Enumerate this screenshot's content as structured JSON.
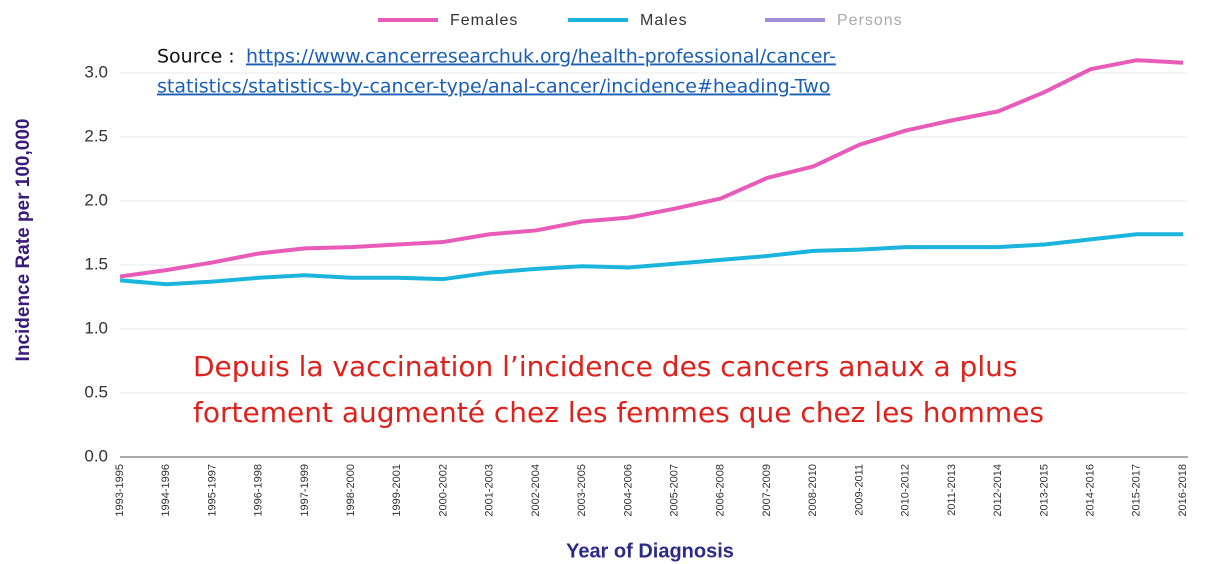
{
  "chart_data": {
    "type": "line",
    "source": {
      "label": "Source :",
      "url_lines": [
        "https://www.cancerresearchuk.org/health-professional/cancer-",
        "statistics/statistics-by-cancer-type/anal-cancer/incidence#heading-Two"
      ]
    },
    "annotation": [
      "Depuis la vaccination l’incidence des cancers anaux a plus",
      "fortement augmenté chez les femmes que chez les hommes"
    ],
    "x_label": "Year of Diagnosis",
    "y_label": "Incidence Rate per 100,000",
    "categories": [
      "1993-1995",
      "1994-1996",
      "1995-1997",
      "1996-1998",
      "1997-1999",
      "1998-2000",
      "1999-2001",
      "2000-2002",
      "2001-2003",
      "2002-2004",
      "2003-2005",
      "2004-2006",
      "2005-2007",
      "2006-2008",
      "2007-2009",
      "2008-2010",
      "2009-2011",
      "2010-2012",
      "2011-2013",
      "2012-2014",
      "2013-2015",
      "2014-2016",
      "2015-2017",
      "2016-2018"
    ],
    "series": [
      {
        "name": "Females",
        "color": "#e85bb8",
        "values": [
          1.41,
          1.46,
          1.52,
          1.59,
          1.63,
          1.64,
          1.66,
          1.68,
          1.74,
          1.77,
          1.84,
          1.87,
          1.94,
          2.02,
          2.18,
          2.27,
          2.44,
          2.55,
          2.63,
          2.7,
          2.85,
          3.03,
          3.1,
          3.08
        ]
      },
      {
        "name": "Males",
        "color": "#1ab4dc",
        "values": [
          1.38,
          1.35,
          1.37,
          1.4,
          1.42,
          1.4,
          1.4,
          1.39,
          1.44,
          1.47,
          1.49,
          1.48,
          1.51,
          1.54,
          1.57,
          1.61,
          1.62,
          1.64,
          1.64,
          1.64,
          1.66,
          1.7,
          1.74,
          1.74
        ]
      },
      {
        "name": "Persons",
        "color": "#a08fd6",
        "hidden": true,
        "values": [
          null,
          null,
          null,
          null,
          null,
          null,
          null,
          null,
          null,
          null,
          null,
          null,
          null,
          null,
          null,
          null,
          null,
          null,
          null,
          null,
          null,
          null,
          null,
          null
        ]
      }
    ],
    "ylim": [
      0,
      3.3
    ],
    "yticks": [
      {
        "value": 0,
        "label": "0.0"
      },
      0.5,
      {
        "value": 1,
        "label": "1.0"
      },
      1.5,
      {
        "value": 2,
        "label": "2.0"
      },
      2.5,
      {
        "value": 3,
        "label": "3.0"
      }
    ],
    "grid": true
  }
}
